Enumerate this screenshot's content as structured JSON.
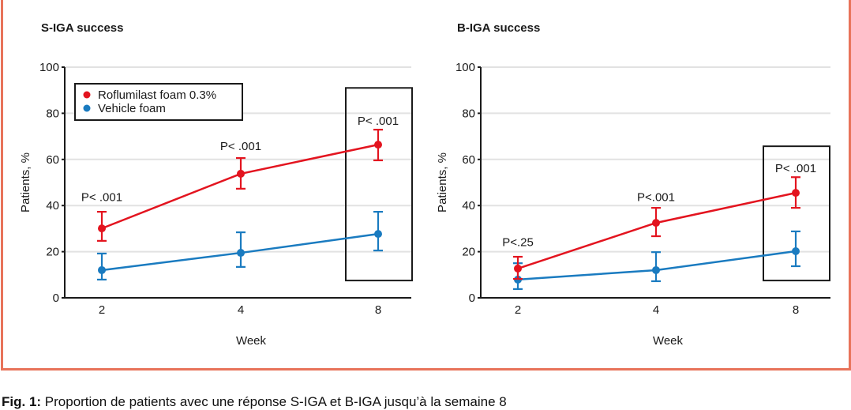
{
  "caption": {
    "label": "Fig. 1:",
    "text": " Proportion de patients avec une réponse S-IGA et B-IGA jusqu’à la semaine 8"
  },
  "colors": {
    "frame": "#e8735a",
    "roflumilast": "#e3141f",
    "vehicle": "#1a7bc0",
    "grid": "#e2e2e2",
    "axis": "#1a1a1a"
  },
  "chart_data": [
    {
      "type": "line",
      "title": "S-IGA success",
      "xlabel": "Week",
      "ylabel": "Patients, %",
      "categories": [
        "2",
        "4",
        "8"
      ],
      "ylim": [
        0,
        100
      ],
      "yticks": [
        "0",
        "20",
        "40",
        "60",
        "80",
        "100"
      ],
      "grid": true,
      "legend": {
        "position": "top-left",
        "entries": [
          "Roflumilast foam 0.3%",
          "Vehicle foam"
        ]
      },
      "series": [
        {
          "name": "Roflumilast foam 0.3%",
          "values": [
            30.1,
            53.8,
            66.4
          ],
          "err_low": [
            24.7,
            47.3,
            59.6
          ],
          "err_high": [
            37.3,
            60.6,
            72.9
          ]
        },
        {
          "name": "Vehicle foam",
          "values": [
            12.0,
            19.5,
            27.7
          ],
          "err_low": [
            7.9,
            13.4,
            20.5
          ],
          "err_high": [
            19.2,
            28.4,
            37.3
          ]
        }
      ],
      "annotations": [
        {
          "x": "2",
          "text": "P< .001",
          "y": 42
        },
        {
          "x": "4",
          "text": "P< .001",
          "y": 64
        },
        {
          "x": "8",
          "text": "P< .001",
          "y": 75
        }
      ],
      "highlight_box": {
        "x": "8",
        "y_range": [
          7.5,
          91
        ]
      }
    },
    {
      "type": "line",
      "title": "B-IGA success",
      "xlabel": "Week",
      "ylabel": "Patients, %",
      "categories": [
        "2",
        "4",
        "8"
      ],
      "ylim": [
        0,
        100
      ],
      "yticks": [
        "0",
        "20",
        "40",
        "60",
        "80",
        "100"
      ],
      "grid": true,
      "legend": null,
      "series": [
        {
          "name": "Roflumilast foam 0.3%",
          "values": [
            12.7,
            32.5,
            45.5
          ],
          "err_low": [
            8.2,
            26.7,
            39.0
          ],
          "err_high": [
            17.8,
            39.0,
            52.3
          ]
        },
        {
          "name": "Vehicle foam",
          "values": [
            7.9,
            12.0,
            20.2
          ],
          "err_low": [
            3.8,
            7.2,
            13.7
          ],
          "err_high": [
            15.0,
            19.8,
            28.8
          ]
        }
      ],
      "annotations": [
        {
          "x": "2",
          "text": "P<.25",
          "y": 22.5
        },
        {
          "x": "4",
          "text": "P<.001",
          "y": 42
        },
        {
          "x": "8",
          "text": "P< .001",
          "y": 54.5
        }
      ],
      "highlight_box": {
        "x": "8",
        "y_range": [
          7.5,
          65.7
        ]
      }
    }
  ]
}
